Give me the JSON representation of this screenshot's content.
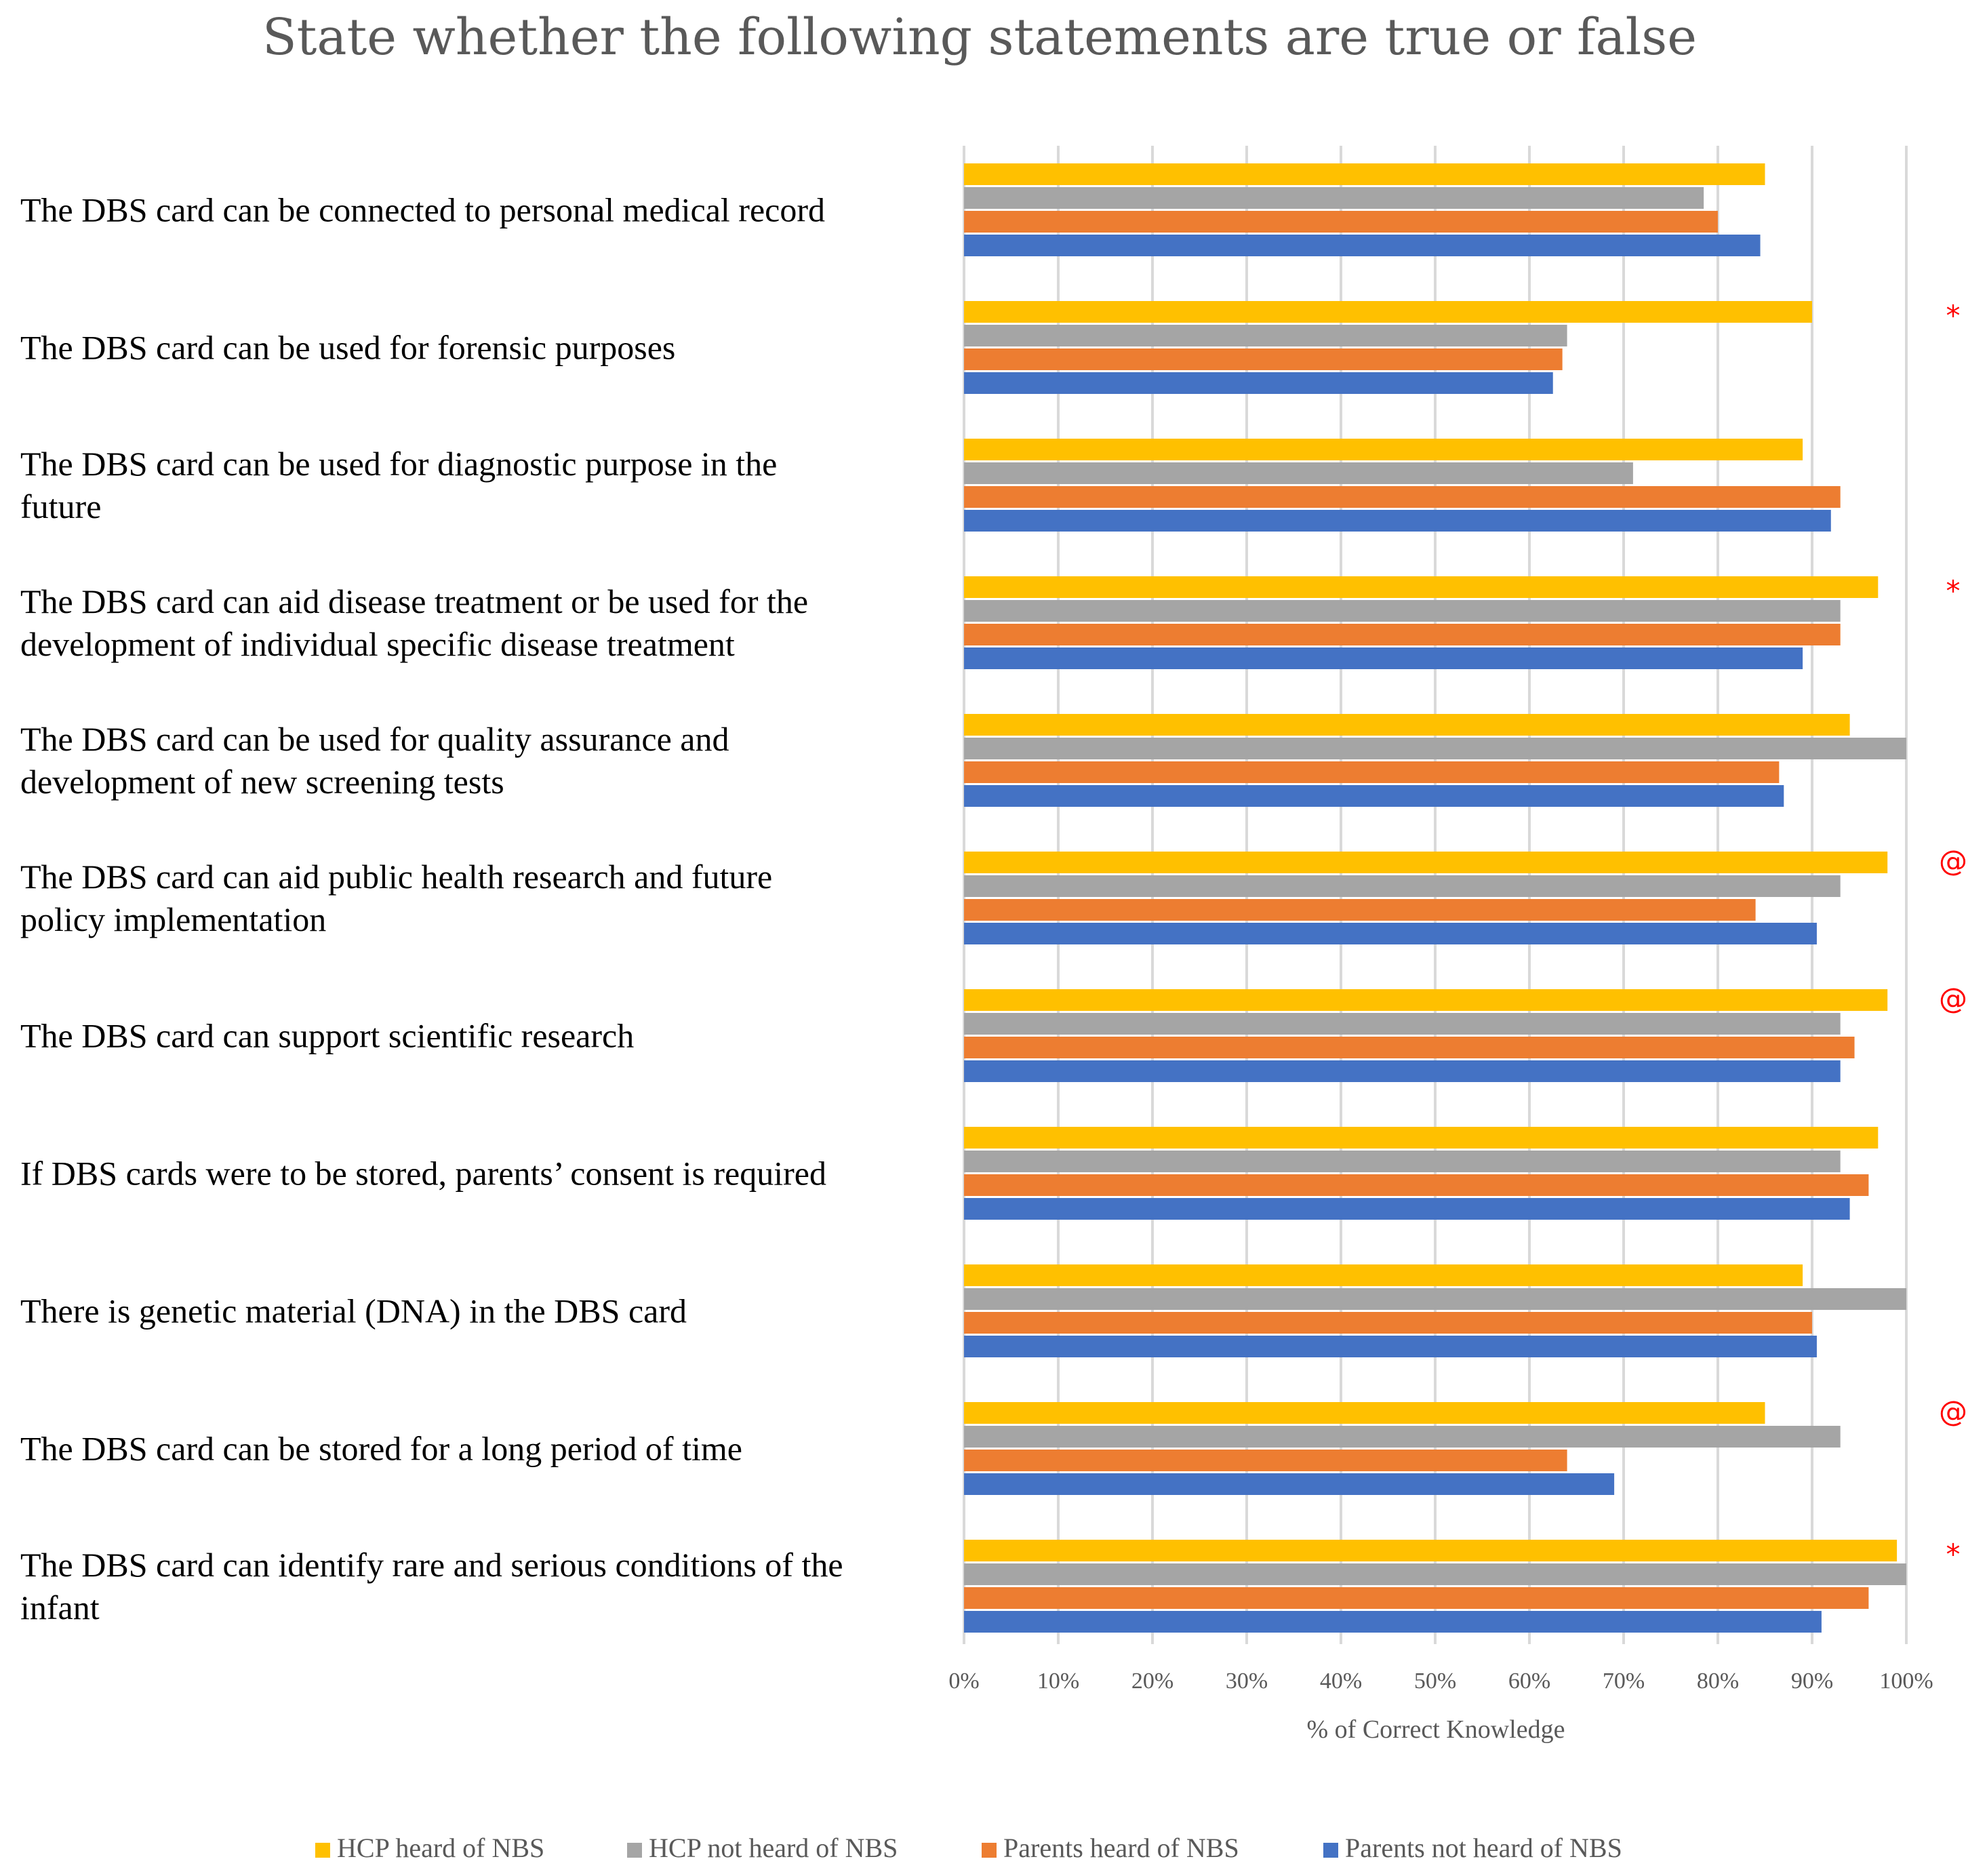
{
  "chart_data": {
    "type": "bar",
    "orientation": "horizontal",
    "title": "State whether the following statements are true or false",
    "xlabel": "% of Correct Knowledge",
    "xlim": [
      0,
      100
    ],
    "x_ticks": [
      "0%",
      "10%",
      "20%",
      "30%",
      "40%",
      "50%",
      "60%",
      "70%",
      "80%",
      "90%",
      "100%"
    ],
    "grid": true,
    "legend_position": "bottom",
    "categories": [
      [
        "The DBS card can be connected to personal medical record"
      ],
      [
        "The DBS card can be used for forensic purposes"
      ],
      [
        "The DBS card can be used for diagnostic purpose in the",
        "future"
      ],
      [
        "The DBS card can aid disease treatment or be used for the",
        "development of individual specific disease treatment"
      ],
      [
        "The DBS card can be used for quality assurance and",
        "development of new screening tests"
      ],
      [
        "The DBS card can aid public health research and future",
        "policy implementation"
      ],
      [
        "The DBS card can support scientific research"
      ],
      [
        "If DBS cards were to be stored, parents’ consent is required"
      ],
      [
        "There is genetic material (DNA) in the DBS card"
      ],
      [
        "The DBS card can be stored for a long period of time"
      ],
      [
        "The DBS card can identify rare and serious conditions of the",
        "infant"
      ]
    ],
    "series": [
      {
        "name": "HCP heard of NBS",
        "color": "#ffc000",
        "values": [
          85,
          90,
          89,
          97,
          94,
          98,
          98,
          97,
          89,
          85,
          99
        ]
      },
      {
        "name": "HCP not heard of NBS",
        "color": "#a5a5a5",
        "values": [
          78.5,
          64,
          71,
          93,
          100,
          93,
          93,
          93,
          100,
          93,
          100
        ]
      },
      {
        "name": "Parents heard of NBS",
        "color": "#ed7d31",
        "values": [
          80,
          63.5,
          93,
          93,
          86.5,
          84,
          94.5,
          96,
          90,
          64,
          96
        ]
      },
      {
        "name": "Parents not heard of NBS",
        "color": "#4472c4",
        "values": [
          84.5,
          62.5,
          92,
          89,
          87,
          90.5,
          93,
          94,
          90.5,
          69,
          91
        ]
      }
    ],
    "markers": [
      "",
      "*",
      "",
      "*",
      "",
      "@",
      "@",
      "",
      "",
      "@",
      "*"
    ]
  }
}
